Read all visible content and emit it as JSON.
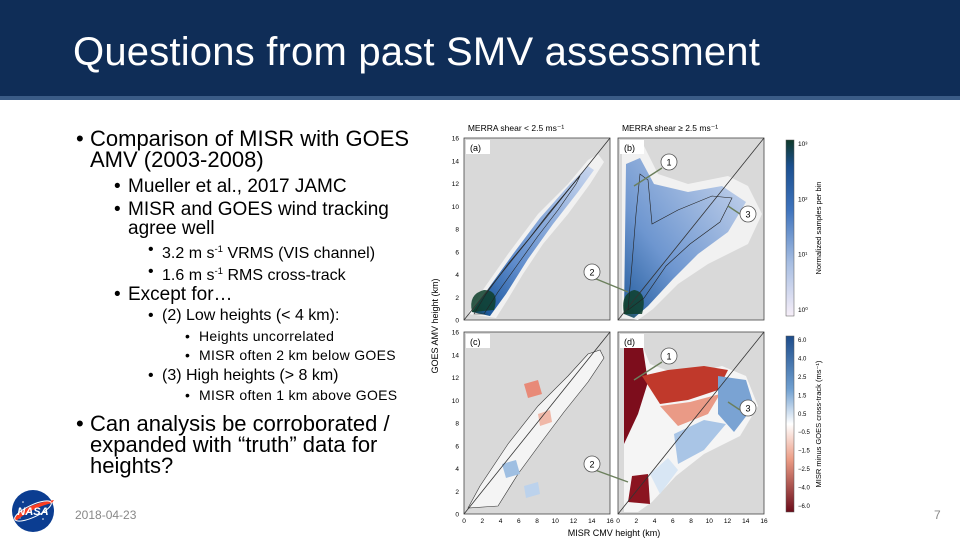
{
  "slide": {
    "title": "Questions from past SMV assessment",
    "date": "2018-04-23",
    "page_number": "7",
    "colors": {
      "header": "#0f2d57",
      "header_rule": "#3a5b86",
      "title_text": "#ffffff"
    },
    "logo": {
      "name": "nasa-logo",
      "text": "NASA"
    }
  },
  "bullets": {
    "b1": "Comparison of MISR with GOES AMV (2003-2008)",
    "b1a": "Mueller et al., 2017 JAMC",
    "b1b": "MISR and GOES wind tracking agree well",
    "b1b_i_pre": "3.2 m s",
    "b1b_i_sup": "-1",
    "b1b_i_post": " VRMS (VIS channel)",
    "b1b_ii_pre": "1.6 m s",
    "b1b_ii_sup": "-1",
    "b1b_ii_post": " RMS cross-track",
    "b1c": "Except for…",
    "b1c_i": "(2) Low heights (< 4 km):",
    "b1c_i_a": "Heights uncorrelated",
    "b1c_i_b": "MISR often 2 km below GOES",
    "b1c_ii": "(3) High heights (> 8 km)",
    "b1c_ii_a": "MISR often 1 km above GOES",
    "b2": "Can analysis be corroborated / expanded with “truth” data for heights?"
  },
  "figure": {
    "panel_titles": {
      "left": "MERRA shear < 2.5 ms⁻¹",
      "right": "MERRA shear ≥ 2.5 ms⁻¹"
    },
    "panel_labels": [
      "(a)",
      "(b)",
      "(c)",
      "(d)"
    ],
    "callouts": [
      "1",
      "2",
      "3"
    ],
    "xlabel": "MISR CMV height (km)",
    "ylabel": "GOES AMV height (km)",
    "x_ticks": [
      "0",
      "2",
      "4",
      "6",
      "8",
      "10",
      "12",
      "14",
      "16"
    ],
    "y_ticks": [
      "0",
      "2",
      "4",
      "6",
      "8",
      "10",
      "12",
      "14",
      "16"
    ],
    "colorbar_top": {
      "label": "Normalized samples per bin",
      "ticks": [
        "10³",
        "10²",
        "10¹",
        "10⁰"
      ],
      "scale": "log"
    },
    "colorbar_bottom": {
      "label": "MISR minus GOES cross-track (ms⁻¹)",
      "ticks": [
        "6.0",
        "4.0",
        "2.5",
        "1.5",
        "0.5",
        "−0.5",
        "−1.5",
        "−2.5",
        "−4.0",
        "−6.0"
      ]
    }
  }
}
